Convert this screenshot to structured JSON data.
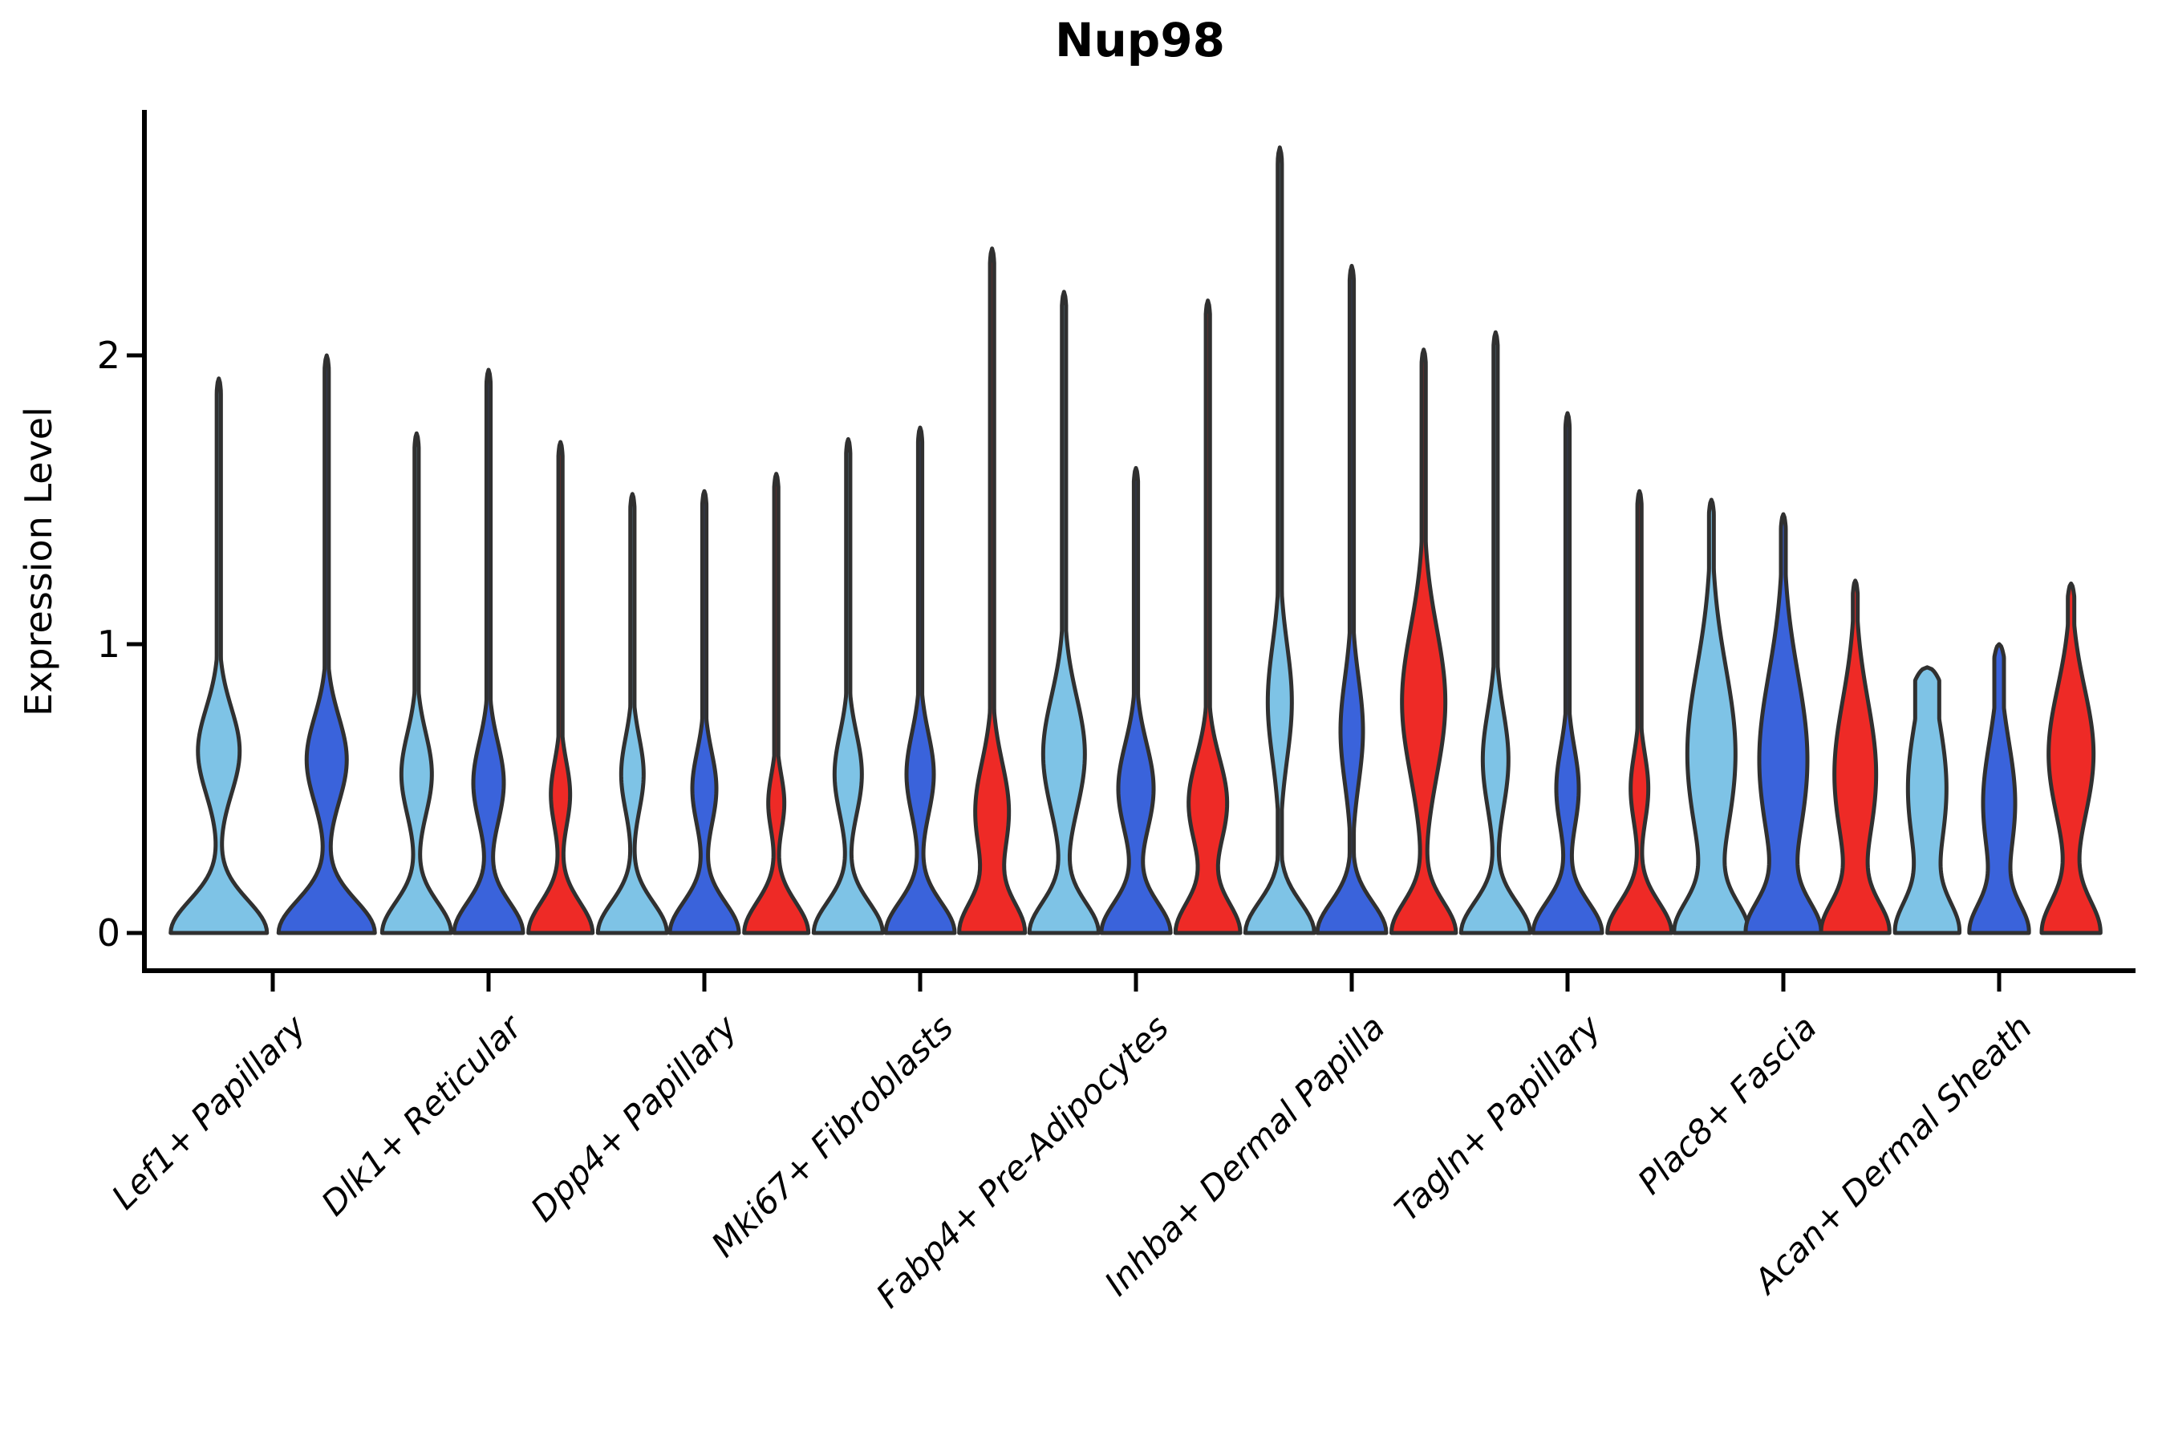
{
  "title": "Nup98",
  "ylabel": "Expression Level",
  "chart_data": {
    "type": "violin",
    "title": "Nup98",
    "xlabel": "",
    "ylabel": "Expression Level",
    "ylim": [
      -0.13,
      2.84
    ],
    "yticks": [
      0,
      1,
      2
    ],
    "grid": false,
    "legend": null,
    "categories": [
      "Lef1+ Papillary",
      "Dlk1+ Reticular",
      "Dpp4+ Papillary",
      "Mki67+ Fibroblasts",
      "Fabp4+ Pre-Adipocytes",
      "Inhba+ Dermal Papilla",
      "Tagln+ Papillary",
      "Plac8+ Fascia",
      "Acan+ Dermal Sheath"
    ],
    "series_order": [
      "light_blue",
      "dark_blue",
      "red"
    ],
    "colors": {
      "light_blue": "#7EC3E6",
      "dark_blue": "#3A63DB",
      "red": "#EE2A26",
      "outline": "#303030",
      "axis": "#000000"
    },
    "groups": [
      {
        "label": "Lef1+ Papillary",
        "violins": [
          {
            "series": "light_blue",
            "max": 1.92,
            "bulge_center": 0.63,
            "bulge_hw": 26,
            "bulge_sigma": 0.21,
            "base_hw": 60,
            "base_sigma": 0.16,
            "tip_hw": 2.6
          },
          {
            "series": "dark_blue",
            "max": 2.0,
            "bulge_center": 0.6,
            "bulge_hw": 25,
            "bulge_sigma": 0.21,
            "base_hw": 60,
            "base_sigma": 0.16,
            "tip_hw": 2.6
          }
        ]
      },
      {
        "label": "Dlk1+ Reticular",
        "violins": [
          {
            "series": "light_blue",
            "max": 1.73,
            "bulge_center": 0.55,
            "bulge_hw": 19,
            "bulge_sigma": 0.2,
            "base_hw": 43,
            "base_sigma": 0.15,
            "tip_hw": 2.6
          },
          {
            "series": "dark_blue",
            "max": 1.95,
            "bulge_center": 0.52,
            "bulge_hw": 19,
            "bulge_sigma": 0.2,
            "base_hw": 43,
            "base_sigma": 0.15,
            "tip_hw": 2.6
          },
          {
            "series": "red",
            "max": 1.7,
            "bulge_center": 0.48,
            "bulge_hw": 12,
            "bulge_sigma": 0.16,
            "base_hw": 40,
            "base_sigma": 0.15,
            "tip_hw": 2.6
          }
        ]
      },
      {
        "label": "Dpp4+ Papillary",
        "violins": [
          {
            "series": "light_blue",
            "max": 1.52,
            "bulge_center": 0.55,
            "bulge_hw": 14,
            "bulge_sigma": 0.18,
            "base_hw": 43,
            "base_sigma": 0.15,
            "tip_hw": 2.6
          },
          {
            "series": "dark_blue",
            "max": 1.53,
            "bulge_center": 0.5,
            "bulge_hw": 15,
            "bulge_sigma": 0.18,
            "base_hw": 43,
            "base_sigma": 0.15,
            "tip_hw": 2.6
          },
          {
            "series": "red",
            "max": 1.59,
            "bulge_center": 0.45,
            "bulge_hw": 10,
            "bulge_sigma": 0.14,
            "base_hw": 40,
            "base_sigma": 0.15,
            "tip_hw": 2.6
          }
        ]
      },
      {
        "label": "Mki67+ Fibroblasts",
        "violins": [
          {
            "series": "light_blue",
            "max": 1.71,
            "bulge_center": 0.55,
            "bulge_hw": 17,
            "bulge_sigma": 0.2,
            "base_hw": 43,
            "base_sigma": 0.15,
            "tip_hw": 2.6
          },
          {
            "series": "dark_blue",
            "max": 1.75,
            "bulge_center": 0.55,
            "bulge_hw": 17,
            "bulge_sigma": 0.2,
            "base_hw": 43,
            "base_sigma": 0.15,
            "tip_hw": 2.6
          },
          {
            "series": "red",
            "max": 2.37,
            "bulge_center": 0.42,
            "bulge_hw": 21,
            "bulge_sigma": 0.24,
            "base_hw": 40,
            "base_sigma": 0.15,
            "tip_hw": 2.6
          }
        ]
      },
      {
        "label": "Fabp4+ Pre-Adipocytes",
        "violins": [
          {
            "series": "light_blue",
            "max": 2.22,
            "bulge_center": 0.62,
            "bulge_hw": 26,
            "bulge_sigma": 0.28,
            "base_hw": 43,
            "base_sigma": 0.15,
            "tip_hw": 2.6
          },
          {
            "series": "dark_blue",
            "max": 1.61,
            "bulge_center": 0.5,
            "bulge_hw": 22,
            "bulge_sigma": 0.22,
            "base_hw": 43,
            "base_sigma": 0.15,
            "tip_hw": 2.6
          },
          {
            "series": "red",
            "max": 2.19,
            "bulge_center": 0.45,
            "bulge_hw": 24,
            "bulge_sigma": 0.22,
            "base_hw": 40,
            "base_sigma": 0.15,
            "tip_hw": 2.6
          }
        ]
      },
      {
        "label": "Inhba+ Dermal Papilla",
        "violins": [
          {
            "series": "light_blue",
            "max": 2.72,
            "bulge_center": 0.8,
            "bulge_hw": 15,
            "bulge_sigma": 0.28,
            "base_hw": 43,
            "base_sigma": 0.15,
            "tip_hw": 2.6
          },
          {
            "series": "dark_blue",
            "max": 2.31,
            "bulge_center": 0.7,
            "bulge_hw": 14,
            "bulge_sigma": 0.26,
            "base_hw": 43,
            "base_sigma": 0.15,
            "tip_hw": 2.6
          },
          {
            "series": "red",
            "max": 2.02,
            "bulge_center": 0.8,
            "bulge_hw": 27,
            "bulge_sigma": 0.36,
            "base_hw": 40,
            "base_sigma": 0.15,
            "tip_hw": 2.6
          }
        ]
      },
      {
        "label": "Tagln+ Papillary",
        "violins": [
          {
            "series": "light_blue",
            "max": 2.08,
            "bulge_center": 0.6,
            "bulge_hw": 16,
            "bulge_sigma": 0.24,
            "base_hw": 43,
            "base_sigma": 0.15,
            "tip_hw": 2.6
          },
          {
            "series": "dark_blue",
            "max": 1.8,
            "bulge_center": 0.5,
            "bulge_hw": 14,
            "bulge_sigma": 0.2,
            "base_hw": 43,
            "base_sigma": 0.15,
            "tip_hw": 2.6
          },
          {
            "series": "red",
            "max": 1.53,
            "bulge_center": 0.5,
            "bulge_hw": 11,
            "bulge_sigma": 0.17,
            "base_hw": 40,
            "base_sigma": 0.15,
            "tip_hw": 2.6
          }
        ]
      },
      {
        "label": "Plac8+ Fascia",
        "violins": [
          {
            "series": "light_blue",
            "max": 1.5,
            "bulge_center": 0.62,
            "bulge_hw": 30,
            "bulge_sigma": 0.42,
            "base_hw": 43,
            "base_sigma": 0.15,
            "tip_hw": 3.0
          },
          {
            "series": "dark_blue",
            "max": 1.45,
            "bulge_center": 0.6,
            "bulge_hw": 30,
            "bulge_sigma": 0.42,
            "base_hw": 43,
            "base_sigma": 0.15,
            "tip_hw": 3.0
          },
          {
            "series": "red",
            "max": 1.22,
            "bulge_center": 0.55,
            "bulge_hw": 26,
            "bulge_sigma": 0.36,
            "base_hw": 40,
            "base_sigma": 0.15,
            "tip_hw": 3.0
          }
        ]
      },
      {
        "label": "Acan+ Dermal Sheath",
        "violins": [
          {
            "series": "light_blue",
            "max": 0.92,
            "bulge_center": 0.5,
            "bulge_hw": 24,
            "bulge_sigma": 0.35,
            "base_hw": 37,
            "base_sigma": 0.15,
            "tip_hw": 15.0
          },
          {
            "series": "dark_blue",
            "max": 1.0,
            "bulge_center": 0.45,
            "bulge_hw": 20,
            "bulge_sigma": 0.3,
            "base_hw": 35,
            "base_sigma": 0.14,
            "tip_hw": 6.0
          },
          {
            "series": "red",
            "max": 1.21,
            "bulge_center": 0.62,
            "bulge_hw": 28,
            "bulge_sigma": 0.32,
            "base_hw": 36,
            "base_sigma": 0.16,
            "tip_hw": 4.0
          }
        ]
      }
    ]
  }
}
